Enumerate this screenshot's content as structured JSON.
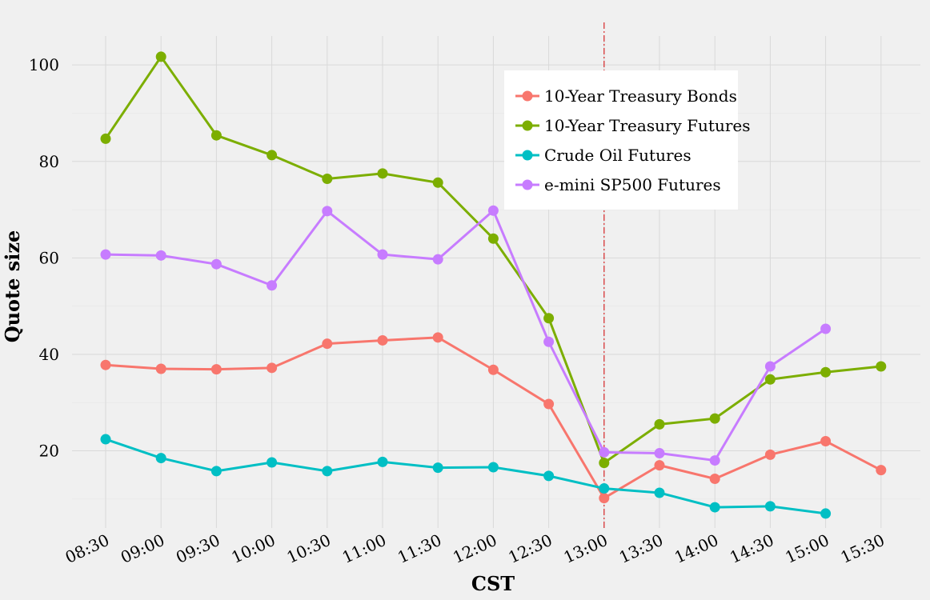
{
  "chart_data": {
    "type": "line",
    "xlabel": "CST",
    "ylabel": "Quote size",
    "categories": [
      "08:30",
      "09:00",
      "09:30",
      "10:00",
      "10:30",
      "11:00",
      "11:30",
      "12:00",
      "12:30",
      "13:00",
      "13:30",
      "14:00",
      "14:30",
      "15:00",
      "15:30"
    ],
    "yticks": [
      20,
      40,
      60,
      80,
      100
    ],
    "ylim": [
      4,
      106
    ],
    "grid": true,
    "legend_position": "top-center",
    "vline": {
      "at": "13:00",
      "color": "#d62728",
      "style": "dash-dot"
    },
    "series": [
      {
        "name": "10-Year Treasury Bonds",
        "color": "#f8766d",
        "values": [
          37.8,
          37.0,
          36.9,
          37.2,
          42.2,
          42.9,
          43.5,
          36.8,
          29.7,
          10.2,
          17.0,
          14.2,
          19.2,
          22.0,
          16.0
        ]
      },
      {
        "name": "10-Year Treasury Futures",
        "color": "#7cae00",
        "values": [
          84.7,
          101.7,
          85.4,
          81.3,
          76.4,
          77.5,
          75.6,
          64.0,
          47.5,
          17.5,
          25.5,
          26.7,
          34.8,
          36.3,
          37.5
        ]
      },
      {
        "name": "Crude Oil Futures",
        "color": "#00bfc4",
        "values": [
          22.4,
          18.5,
          15.8,
          17.6,
          15.8,
          17.7,
          16.5,
          16.6,
          14.8,
          12.2,
          11.3,
          8.3,
          8.5,
          7.0,
          null
        ]
      },
      {
        "name": "e-mini SP500 Futures",
        "color": "#c77cff",
        "values": [
          60.7,
          60.5,
          58.7,
          54.3,
          69.7,
          60.7,
          59.7,
          69.8,
          42.6,
          19.7,
          19.5,
          18.0,
          37.5,
          45.3,
          null
        ]
      }
    ]
  }
}
